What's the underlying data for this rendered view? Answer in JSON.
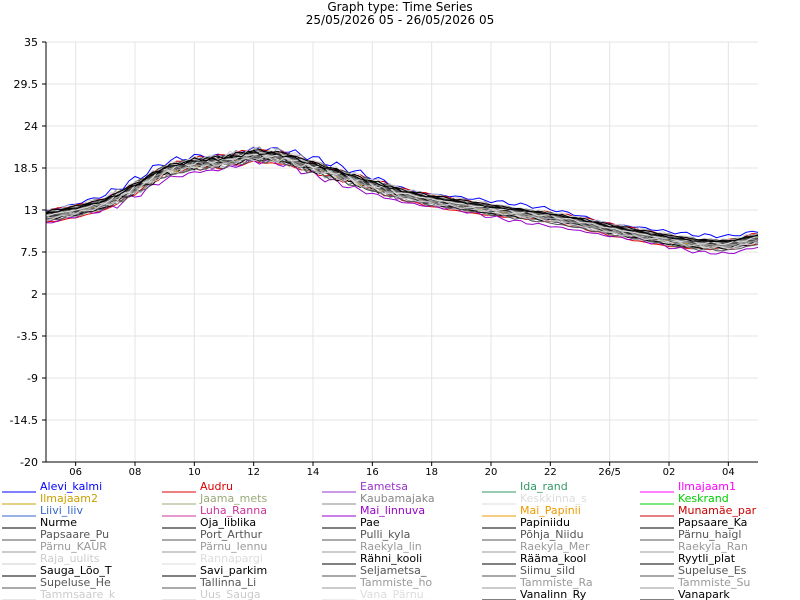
{
  "chart_data": {
    "type": "line",
    "title": "Graph type: Time Series",
    "subtitle": "25/05/2026 05 - 26/05/2026 05",
    "xlabel": "",
    "ylabel": "",
    "ylim": [
      -20,
      35
    ],
    "yticks": [
      "35",
      "29.5",
      "24",
      "18.5",
      "13",
      "7.5",
      "2",
      "-3.5",
      "-9",
      "-14.5",
      "-20"
    ],
    "x_range_hours": [
      0,
      24
    ],
    "xticks": [
      {
        "label": "06",
        "hour": 1
      },
      {
        "label": "08",
        "hour": 3
      },
      {
        "label": "10",
        "hour": 5
      },
      {
        "label": "12",
        "hour": 7
      },
      {
        "label": "14",
        "hour": 9
      },
      {
        "label": "16",
        "hour": 11
      },
      {
        "label": "18",
        "hour": 13
      },
      {
        "label": "20",
        "hour": 15
      },
      {
        "label": "22",
        "hour": 17
      },
      {
        "label": "26/5",
        "hour": 19
      },
      {
        "label": "02",
        "hour": 21
      },
      {
        "label": "04",
        "hour": 23
      }
    ],
    "grid": true,
    "legend_position": "bottom",
    "reference_hours": [
      0,
      1,
      2,
      3,
      4,
      5,
      6,
      7,
      8,
      9,
      10,
      11,
      12,
      13,
      14,
      15,
      16,
      17,
      18,
      19,
      20,
      21,
      22,
      23,
      24
    ],
    "reference_values": [
      12.3,
      13.0,
      14.0,
      16.0,
      18.3,
      19.2,
      19.5,
      20.3,
      20.0,
      18.8,
      17.6,
      16.4,
      15.2,
      14.4,
      13.8,
      13.2,
      12.7,
      12.2,
      11.5,
      10.6,
      9.9,
      9.2,
      8.7,
      8.6,
      9.4
    ],
    "series": [
      {
        "name": "Alevi_kalmi",
        "color": "#0000ff",
        "offset": 1.0,
        "noise": 0.5
      },
      {
        "name": "Audru",
        "color": "#dd0000",
        "offset": -1.0,
        "noise": 0.3
      },
      {
        "name": "Eametsa",
        "color": "#9933cc",
        "offset": -0.6,
        "noise": 0.5
      },
      {
        "name": "Ida_rand",
        "color": "#339966",
        "offset": 0.2,
        "noise": 0.3
      },
      {
        "name": "Ilmajaam1",
        "color": "#ff00ff",
        "offset": 0.4,
        "noise": 0.3
      },
      {
        "name": "Ilmajaam2",
        "color": "#c8a000",
        "offset": -0.3,
        "noise": 0.4
      },
      {
        "name": "Jaama_mets",
        "color": "#99aa77",
        "offset": -0.5,
        "noise": 0.5
      },
      {
        "name": "Kaubamajaka",
        "color": "#888888",
        "offset": 0.5,
        "noise": 0.6
      },
      {
        "name": "Keskkinna_s",
        "color": "#dddddd",
        "offset": -0.2,
        "noise": 0.4
      },
      {
        "name": "Keskrand",
        "color": "#00cc00",
        "offset": 0.1,
        "noise": 0.3
      },
      {
        "name": "Liivi_liiv",
        "color": "#3366cc",
        "offset": 0.3,
        "noise": 0.4
      },
      {
        "name": "Luha_Ranna",
        "color": "#cc3399",
        "offset": 0.0,
        "noise": 0.4
      },
      {
        "name": "Mai_linnuva",
        "color": "#9900cc",
        "offset": -1.3,
        "noise": 0.5
      },
      {
        "name": "Mai_Papinii",
        "color": "#ee9900",
        "offset": 0.2,
        "noise": 0.3
      },
      {
        "name": "Munamäe_par",
        "color": "#cc0000",
        "offset": 0.6,
        "noise": 0.3
      },
      {
        "name": "Nurme",
        "color": "#000000",
        "offset": -0.1,
        "noise": 0.3
      },
      {
        "name": "Oja_liblika",
        "color": "#000000",
        "offset": 0.3,
        "noise": 0.4
      },
      {
        "name": "Pae",
        "color": "#000000",
        "offset": 0.1,
        "noise": 0.3
      },
      {
        "name": "Papiniidu",
        "color": "#000000",
        "offset": -0.3,
        "noise": 0.4
      },
      {
        "name": "Papsaare_Ka",
        "color": "#000000",
        "offset": 0.0,
        "noise": 0.3
      },
      {
        "name": "Papsaare_Pu",
        "color": "#555555",
        "offset": -0.4,
        "noise": 0.4
      },
      {
        "name": "Port_Arthur",
        "color": "#555555",
        "offset": 0.4,
        "noise": 0.3
      },
      {
        "name": "Pulli_kyla",
        "color": "#555555",
        "offset": -0.6,
        "noise": 0.5
      },
      {
        "name": "Põhja_Niidu",
        "color": "#555555",
        "offset": 0.2,
        "noise": 0.4
      },
      {
        "name": "Pärnu_haigl",
        "color": "#555555",
        "offset": 0.0,
        "noise": 0.4
      },
      {
        "name": "Pärnu_KAUR",
        "color": "#999999",
        "offset": -0.2,
        "noise": 0.3
      },
      {
        "name": "Pärnu_lennu",
        "color": "#999999",
        "offset": -0.8,
        "noise": 0.5
      },
      {
        "name": "Raekyla_lin",
        "color": "#999999",
        "offset": 0.3,
        "noise": 0.4
      },
      {
        "name": "Raekyla_Mer",
        "color": "#999999",
        "offset": 0.1,
        "noise": 0.4
      },
      {
        "name": "Raekyla_Ran",
        "color": "#999999",
        "offset": -0.1,
        "noise": 0.4
      },
      {
        "name": "Raja_uulits",
        "color": "#cccccc",
        "offset": 0.5,
        "noise": 0.5
      },
      {
        "name": "Rannapargi",
        "color": "#dddddd",
        "offset": -0.5,
        "noise": 0.5
      },
      {
        "name": "Rähni_kooli",
        "color": "#000000",
        "offset": 0.2,
        "noise": 0.4
      },
      {
        "name": "Rääma_kool",
        "color": "#000000",
        "offset": -0.2,
        "noise": 0.4
      },
      {
        "name": "Ryytli_plat",
        "color": "#000000",
        "offset": 0.3,
        "noise": 0.3
      },
      {
        "name": "Sauga_Lõo_T",
        "color": "#000000",
        "offset": -0.7,
        "noise": 0.5
      },
      {
        "name": "Savi_parkim",
        "color": "#000000",
        "offset": 0.1,
        "noise": 0.4
      },
      {
        "name": "Seljametsa_",
        "color": "#555555",
        "offset": -0.9,
        "noise": 0.5
      },
      {
        "name": "Siimu_sild",
        "color": "#555555",
        "offset": 0.0,
        "noise": 0.3
      },
      {
        "name": "Supeluse_Es",
        "color": "#555555",
        "offset": 0.4,
        "noise": 0.4
      },
      {
        "name": "Supeluse_He",
        "color": "#555555",
        "offset": 0.2,
        "noise": 0.4
      },
      {
        "name": "Tallinna_Li",
        "color": "#555555",
        "offset": -0.3,
        "noise": 0.4
      },
      {
        "name": "Tammiste_ho",
        "color": "#999999",
        "offset": -0.4,
        "noise": 0.4
      },
      {
        "name": "Tammiste_Ra",
        "color": "#999999",
        "offset": 0.1,
        "noise": 0.4
      },
      {
        "name": "Tammiste_Su",
        "color": "#999999",
        "offset": -0.2,
        "noise": 0.4
      },
      {
        "name": "Tammsaare_k",
        "color": "#cccccc",
        "offset": 0.6,
        "noise": 0.5
      },
      {
        "name": "Uus_Sauga",
        "color": "#cccccc",
        "offset": -0.6,
        "noise": 0.5
      },
      {
        "name": "Vana_Pärnu_",
        "color": "#dddddd",
        "offset": 0.0,
        "noise": 0.4
      },
      {
        "name": "Vanalinn_Ry",
        "color": "#000000",
        "offset": 0.5,
        "noise": 0.3
      },
      {
        "name": "Vanapark",
        "color": "#000000",
        "offset": 0.3,
        "noise": 0.3
      }
    ]
  }
}
